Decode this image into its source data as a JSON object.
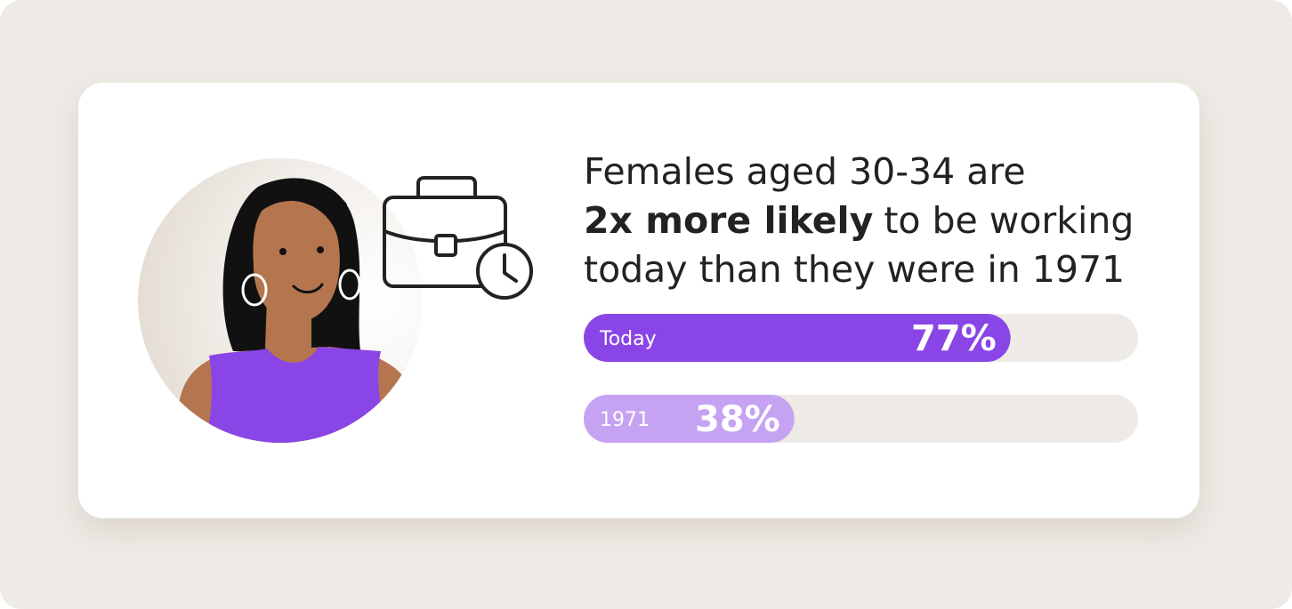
{
  "chart_data": {
    "type": "bar",
    "orientation": "horizontal",
    "title_lines": [
      [
        {
          "text": "Females aged 30-34 are"
        }
      ],
      [
        {
          "text": "2x more likely",
          "bold": true
        },
        {
          "text": "to be working"
        }
      ],
      [
        {
          "text": "today than they were in 1971"
        }
      ]
    ],
    "categories": [
      "Today",
      "1971"
    ],
    "values": [
      77,
      38
    ],
    "value_labels": [
      "77%",
      "38%"
    ],
    "colors": [
      "#8a45e6",
      "#c6a3f2"
    ],
    "track_color": "#eeeae5",
    "xlim": [
      0,
      100
    ]
  }
}
